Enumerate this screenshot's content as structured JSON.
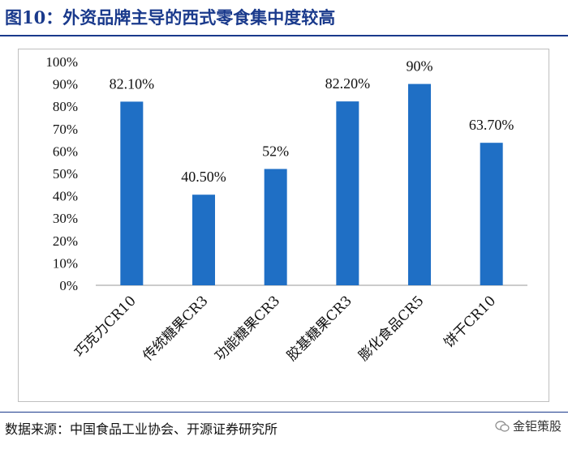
{
  "header": {
    "title": "图10：外资品牌主导的西式零食集中度较高"
  },
  "footer": {
    "source": "数据来源：中国食品工业协会、开源证券研究所",
    "brand": "金钜策股"
  },
  "colors": {
    "bar": "#1f6fc5",
    "title": "#1a3a8c"
  },
  "chart_data": {
    "type": "bar",
    "title": "外资品牌主导的西式零食集中度较高",
    "categories": [
      "巧克力CR10",
      "传统糖果CR3",
      "功能糖果CR3",
      "胶基糖果CR3",
      "膨化食品CR5",
      "饼干CR10"
    ],
    "values": [
      82.1,
      40.5,
      52,
      82.2,
      90,
      63.7
    ],
    "data_labels": [
      "82.10%",
      "40.50%",
      "52%",
      "82.20%",
      "90%",
      "63.70%"
    ],
    "ylim": [
      0,
      100
    ],
    "yticks": [
      0,
      10,
      20,
      30,
      40,
      50,
      60,
      70,
      80,
      90,
      100
    ],
    "ytick_labels": [
      "0%",
      "10%",
      "20%",
      "30%",
      "40%",
      "50%",
      "60%",
      "70%",
      "80%",
      "90%",
      "100%"
    ],
    "xlabel": "",
    "ylabel": "",
    "grid": false,
    "legend": "none"
  }
}
